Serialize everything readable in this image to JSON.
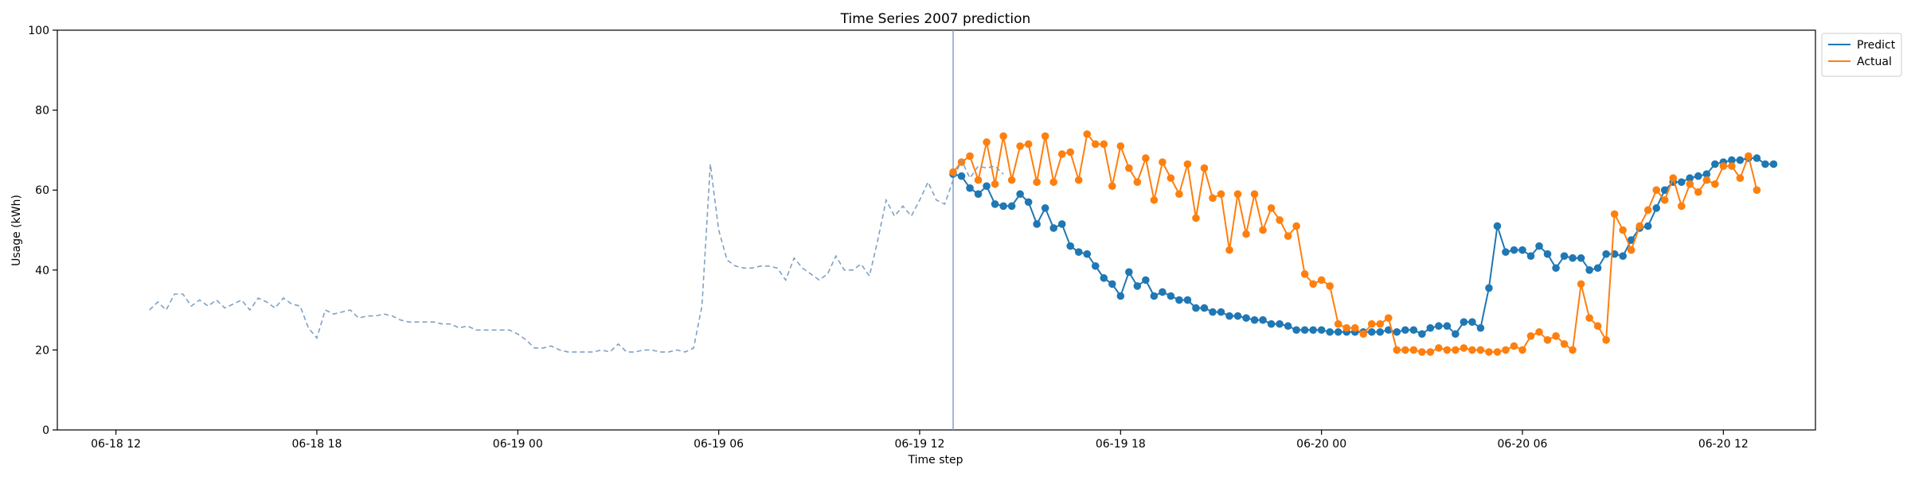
{
  "chart_data": {
    "type": "line",
    "title": "Time Series 2007 prediction",
    "xlabel": "Time step",
    "ylabel": "Usage (kWh)",
    "ylim": [
      0,
      100
    ],
    "xlim": [
      "2007-06-18 10:15",
      "2007-06-20 14:45"
    ],
    "xticks": [
      {
        "t": "2007-06-18 12:00",
        "label": "06-18 12"
      },
      {
        "t": "2007-06-18 18:00",
        "label": "06-18 18"
      },
      {
        "t": "2007-06-19 00:00",
        "label": "06-19 00"
      },
      {
        "t": "2007-06-19 06:00",
        "label": "06-19 06"
      },
      {
        "t": "2007-06-19 12:00",
        "label": "06-19 12"
      },
      {
        "t": "2007-06-19 18:00",
        "label": "06-19 18"
      },
      {
        "t": "2007-06-20 00:00",
        "label": "06-20 00"
      },
      {
        "t": "2007-06-20 06:00",
        "label": "06-20 06"
      },
      {
        "t": "2007-06-20 12:00",
        "label": "06-20 12"
      }
    ],
    "yticks": [
      0,
      20,
      40,
      60,
      80,
      100
    ],
    "grid": false,
    "legend_position": "outside top-right",
    "split_time": "2007-06-19 13:00",
    "series": [
      {
        "name": "Predict",
        "color": "#1f77b4",
        "x_start": "2007-06-19 13:00",
        "step_minutes": 15,
        "values": [
          64.0,
          63.5,
          60.5,
          59.0,
          61.0,
          56.5,
          56.0,
          56.0,
          59.0,
          57.0,
          51.5,
          55.5,
          50.5,
          51.5,
          46.0,
          44.5,
          44.0,
          41.0,
          38.0,
          36.5,
          33.5,
          39.5,
          36.0,
          37.5,
          33.5,
          34.5,
          33.5,
          32.5,
          32.5,
          30.5,
          30.5,
          29.5,
          29.5,
          28.5,
          28.5,
          28.0,
          27.5,
          27.5,
          26.5,
          26.5,
          26.0,
          25.0,
          25.0,
          25.0,
          25.0,
          24.5,
          24.5,
          24.5,
          24.5,
          24.5,
          24.5,
          24.5,
          25.0,
          24.5,
          25.0,
          25.0,
          24.0,
          25.5,
          26.0,
          26.0,
          24.0,
          27.0,
          27.0,
          25.5,
          35.5,
          51.0,
          44.5,
          45.0,
          45.0,
          43.5,
          46.0,
          44.0,
          40.5,
          43.5,
          43.0,
          43.0,
          40.0,
          40.5,
          44.0,
          44.0,
          43.5,
          47.5,
          50.5,
          51.0,
          55.5,
          60.0,
          62.0,
          62.0,
          63.0,
          63.5,
          64.0,
          66.5,
          67.0,
          67.5,
          67.5,
          68.0,
          68.0,
          66.5,
          66.5
        ]
      },
      {
        "name": "Actual",
        "color": "#ff7f0e",
        "x_start": "2007-06-19 13:00",
        "step_minutes": 15,
        "values": [
          64.5,
          67.0,
          68.5,
          62.5,
          72.0,
          61.5,
          73.5,
          62.5,
          71.0,
          71.5,
          62.0,
          73.5,
          62.0,
          69.0,
          69.5,
          62.5,
          74.0,
          71.5,
          71.5,
          61.0,
          71.0,
          65.5,
          62.0,
          68.0,
          57.5,
          67.0,
          63.0,
          59.0,
          66.5,
          53.0,
          65.5,
          58.0,
          59.0,
          45.0,
          59.0,
          49.0,
          59.0,
          50.0,
          55.5,
          52.5,
          48.5,
          51.0,
          39.0,
          36.5,
          37.5,
          36.0,
          26.5,
          25.5,
          25.5,
          24.0,
          26.5,
          26.5,
          28.0,
          20.0,
          20.0,
          20.0,
          19.5,
          19.5,
          20.5,
          20.0,
          20.0,
          20.5,
          20.0,
          20.0,
          19.5,
          19.5,
          20.0,
          21.0,
          20.0,
          23.5,
          24.5,
          22.5,
          23.5,
          21.5,
          20.0,
          36.5,
          28.0,
          26.0,
          22.5,
          54.0,
          50.0,
          45.0,
          51.0,
          55.0,
          60.0,
          57.5,
          63.0,
          56.0,
          61.5,
          59.5,
          62.5,
          61.5,
          66.0,
          66.0,
          63.0,
          68.5,
          60.0
        ]
      },
      {
        "name": "",
        "role": "history",
        "color": "#7fa1c4",
        "x_start": "2007-06-18 13:00",
        "step_minutes": 15,
        "values": [
          30.0,
          32.0,
          30.0,
          34.0,
          34.0,
          31.0,
          32.5,
          31.0,
          32.5,
          30.5,
          31.5,
          32.5,
          30.0,
          33.0,
          32.0,
          30.5,
          33.0,
          31.5,
          31.0,
          25.5,
          23.0,
          30.0,
          29.0,
          29.5,
          30.0,
          28.0,
          28.5,
          28.5,
          29.0,
          28.5,
          27.5,
          27.0,
          27.0,
          27.0,
          27.0,
          26.5,
          26.5,
          25.5,
          26.0,
          25.0,
          25.0,
          25.0,
          25.0,
          25.0,
          24.0,
          22.5,
          20.5,
          20.5,
          21.0,
          20.0,
          19.5,
          19.5,
          19.5,
          19.5,
          20.0,
          19.5,
          21.5,
          19.5,
          19.5,
          20.0,
          20.0,
          19.5,
          19.5,
          20.0,
          19.5,
          20.5,
          31.0,
          66.5,
          50.0,
          42.5,
          41.0,
          40.5,
          40.5,
          41.0,
          41.0,
          40.5,
          37.5,
          43.0,
          40.5,
          39.0,
          37.5,
          39.0,
          43.5,
          40.0,
          40.0,
          41.5,
          38.5,
          47.5,
          57.5,
          53.5,
          56.0,
          53.5,
          57.5,
          62.0,
          57.5,
          56.5,
          62.5,
          67.5,
          63.0,
          66.0,
          65.5,
          66.0,
          64.0
        ]
      }
    ]
  }
}
